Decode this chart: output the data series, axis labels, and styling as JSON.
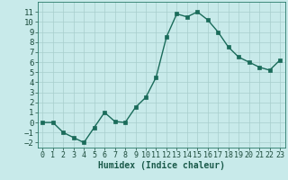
{
  "x": [
    0,
    1,
    2,
    3,
    4,
    5,
    6,
    7,
    8,
    9,
    10,
    11,
    12,
    13,
    14,
    15,
    16,
    17,
    18,
    19,
    20,
    21,
    22,
    23
  ],
  "y": [
    0.0,
    0.0,
    -1.0,
    -1.5,
    -2.0,
    -0.5,
    1.0,
    0.1,
    0.0,
    1.5,
    2.5,
    4.5,
    8.5,
    10.8,
    10.5,
    11.0,
    10.2,
    9.0,
    7.5,
    6.5,
    6.0,
    5.5,
    5.2,
    6.2
  ],
  "xlabel": "Humidex (Indice chaleur)",
  "ylim": [
    -2.5,
    12
  ],
  "xlim": [
    -0.5,
    23.5
  ],
  "yticks": [
    -2,
    -1,
    0,
    1,
    2,
    3,
    4,
    5,
    6,
    7,
    8,
    9,
    10,
    11
  ],
  "xticks": [
    0,
    1,
    2,
    3,
    4,
    5,
    6,
    7,
    8,
    9,
    10,
    11,
    12,
    13,
    14,
    15,
    16,
    17,
    18,
    19,
    20,
    21,
    22,
    23
  ],
  "line_color": "#1a6b5a",
  "marker_color": "#1a6b5a",
  "bg_color": "#c8eaea",
  "grid_color": "#a8cecc",
  "xlabel_fontsize": 7,
  "tick_fontsize": 6,
  "line_width": 1.0,
  "marker_size": 2.5
}
